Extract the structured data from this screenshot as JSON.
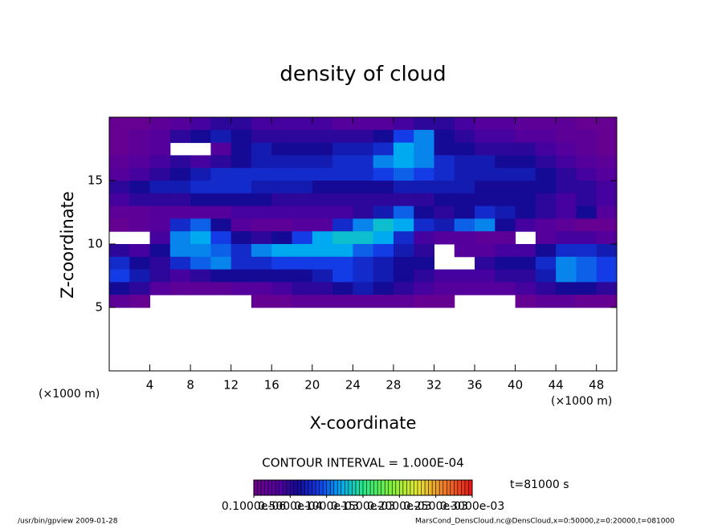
{
  "chart_data": {
    "type": "heatmap",
    "title": "density of cloud",
    "x_label": "X-coordinate",
    "y_label": "Z-coordinate",
    "x_unit": "(×1000 m)",
    "y_unit": "(×1000 m)",
    "contour_text": "CONTOUR INTERVAL = 1.000E-04",
    "time_text": "t=81000 s",
    "footer_left": "/usr/bin/gpview  2009-01-28",
    "footer_right": "MarsCond_DensCloud.nc@DensCloud,x=0:50000,z=0:20000,t=081000",
    "xlim": [
      0,
      50
    ],
    "ylim": [
      0,
      20
    ],
    "xticks": [
      4,
      8,
      12,
      16,
      20,
      24,
      28,
      32,
      36,
      40,
      44,
      48
    ],
    "yticks": [
      5,
      10,
      15
    ],
    "clim": [
      0,
      0.0003
    ],
    "cticks": [
      {
        "value": 1e-07,
        "label": "0.1000e-06"
      },
      {
        "value": 5e-05,
        "label": "0.5000e-04"
      },
      {
        "value": 0.0001,
        "label": "0.1000e-03"
      },
      {
        "value": 0.00015,
        "label": "0.1500e-03"
      },
      {
        "value": 0.0002,
        "label": "0.2000e-03"
      },
      {
        "value": 0.00025,
        "label": "0.2500e-03"
      },
      {
        "value": 0.0003,
        "label": "0.3000e-03"
      }
    ],
    "x": [
      1,
      3,
      5,
      7,
      9,
      11,
      13,
      15,
      17,
      19,
      21,
      23,
      25,
      27,
      29,
      31,
      33,
      35,
      37,
      39,
      41,
      43,
      45,
      47,
      49
    ],
    "y": [
      19.5,
      18.5,
      17.5,
      16.5,
      15.5,
      14.5,
      13.5,
      12.5,
      11.5,
      10.5,
      9.5,
      8.5,
      7.5,
      6.5,
      5.5
    ],
    "z": [
      [
        1e-05,
        1e-05,
        2e-05,
        3e-05,
        4e-05,
        5e-05,
        5e-05,
        4e-05,
        4e-05,
        4e-05,
        4e-05,
        3e-05,
        3e-05,
        3e-05,
        4e-05,
        5e-05,
        5e-05,
        4e-05,
        3e-05,
        3e-05,
        2e-05,
        2e-05,
        2e-05,
        1e-05,
        1e-05
      ],
      [
        1e-05,
        2e-05,
        3e-05,
        5e-05,
        6e-05,
        7e-05,
        6e-05,
        5e-05,
        5e-05,
        5e-05,
        5e-05,
        5e-05,
        5e-05,
        6e-05,
        9e-05,
        0.00011,
        6e-05,
        5e-05,
        4e-05,
        4e-05,
        3e-05,
        3e-05,
        2e-05,
        2e-05,
        1e-05
      ],
      [
        1e-05,
        2e-05,
        3e-05,
        null,
        null,
        3e-05,
        6e-05,
        7e-05,
        6e-05,
        6e-05,
        6e-05,
        7e-05,
        7e-05,
        8e-05,
        0.00012,
        0.00011,
        6e-05,
        6e-05,
        5e-05,
        5e-05,
        5e-05,
        4e-05,
        3e-05,
        2e-05,
        1e-05
      ],
      [
        2e-05,
        3e-05,
        4e-05,
        5e-05,
        4e-05,
        5e-05,
        6e-05,
        7e-05,
        7e-05,
        7e-05,
        7e-05,
        8e-05,
        8e-05,
        0.00011,
        0.00012,
        0.00011,
        8e-05,
        7e-05,
        7e-05,
        6e-05,
        6e-05,
        5e-05,
        4e-05,
        3e-05,
        2e-05
      ],
      [
        3e-05,
        4e-05,
        5e-05,
        6e-05,
        7e-05,
        8e-05,
        8e-05,
        8e-05,
        8e-05,
        8e-05,
        8e-05,
        8e-05,
        8e-05,
        9e-05,
        0.0001,
        9e-05,
        8e-05,
        7e-05,
        7e-05,
        7e-05,
        7e-05,
        6e-05,
        5e-05,
        4e-05,
        3e-05
      ],
      [
        5e-05,
        6e-05,
        7e-05,
        7e-05,
        8e-05,
        8e-05,
        8e-05,
        7e-05,
        7e-05,
        7e-05,
        6e-05,
        6e-05,
        6e-05,
        6e-05,
        7e-05,
        7e-05,
        7e-05,
        7e-05,
        6e-05,
        6e-05,
        6e-05,
        6e-05,
        5e-05,
        5e-05,
        4e-05
      ],
      [
        4e-05,
        5e-05,
        5e-05,
        5e-05,
        6e-05,
        6e-05,
        6e-05,
        6e-05,
        5e-05,
        5e-05,
        5e-05,
        5e-05,
        5e-05,
        5e-05,
        5e-05,
        5e-05,
        6e-05,
        6e-05,
        6e-05,
        6e-05,
        6e-05,
        5e-05,
        4e-05,
        5e-05,
        4e-05
      ],
      [
        2e-05,
        2e-05,
        3e-05,
        3e-05,
        3e-05,
        3e-05,
        4e-05,
        4e-05,
        4e-05,
        4e-05,
        4e-05,
        4e-05,
        5e-05,
        7e-05,
        0.0001,
        6e-05,
        5e-05,
        6e-05,
        8e-05,
        7e-05,
        6e-05,
        5e-05,
        4e-05,
        6e-05,
        3e-05
      ],
      [
        1e-05,
        2e-05,
        3e-05,
        8e-05,
        0.0001,
        6e-05,
        3e-05,
        2e-05,
        2e-05,
        3e-05,
        3e-05,
        8e-05,
        0.00011,
        0.00013,
        0.00012,
        8e-05,
        7e-05,
        0.0001,
        0.00011,
        6e-05,
        4e-05,
        3e-05,
        2e-05,
        1e-05,
        1e-05
      ],
      [
        null,
        null,
        4e-05,
        0.00011,
        0.00012,
        9e-05,
        6e-05,
        5e-05,
        6e-05,
        9e-05,
        0.00012,
        0.00013,
        0.00013,
        0.00012,
        8e-05,
        4e-05,
        3e-05,
        3e-05,
        2e-05,
        2e-05,
        null,
        3e-05,
        4e-05,
        4e-05,
        3e-05
      ],
      [
        5e-05,
        4e-05,
        6e-05,
        0.00011,
        0.00011,
        0.0001,
        8e-05,
        0.00011,
        0.00012,
        0.00012,
        0.00012,
        0.00012,
        0.0001,
        9e-05,
        7e-05,
        5e-05,
        null,
        3e-05,
        3e-05,
        4e-05,
        4e-05,
        6e-05,
        8e-05,
        8e-05,
        7e-05
      ],
      [
        8e-05,
        6e-05,
        5e-05,
        8e-05,
        0.0001,
        0.00011,
        8e-05,
        8e-05,
        9e-05,
        9e-05,
        9e-05,
        9e-05,
        8e-05,
        7e-05,
        6e-05,
        6e-05,
        null,
        null,
        5e-05,
        6e-05,
        6e-05,
        8e-05,
        0.00011,
        0.0001,
        9e-05
      ],
      [
        9e-05,
        7e-05,
        5e-05,
        4e-05,
        5e-05,
        6e-05,
        6e-05,
        6e-05,
        6e-05,
        6e-05,
        7e-05,
        9e-05,
        8e-05,
        7e-05,
        6e-05,
        5e-05,
        4e-05,
        4e-05,
        4e-05,
        5e-05,
        5e-05,
        7e-05,
        0.00011,
        0.0001,
        9e-05
      ],
      [
        6e-05,
        5e-05,
        3e-05,
        2e-05,
        2e-05,
        2e-05,
        3e-05,
        3e-05,
        4e-05,
        5e-05,
        5e-05,
        6e-05,
        7e-05,
        6e-05,
        5e-05,
        4e-05,
        3e-05,
        3e-05,
        3e-05,
        3e-05,
        4e-05,
        5e-05,
        6e-05,
        6e-05,
        5e-05
      ],
      [
        2e-05,
        1e-05,
        null,
        null,
        null,
        null,
        null,
        1e-05,
        1e-05,
        2e-05,
        2e-05,
        2e-05,
        2e-05,
        2e-05,
        2e-05,
        1e-05,
        1e-05,
        null,
        null,
        null,
        1e-05,
        2e-05,
        2e-05,
        1e-05,
        1e-05
      ]
    ]
  }
}
